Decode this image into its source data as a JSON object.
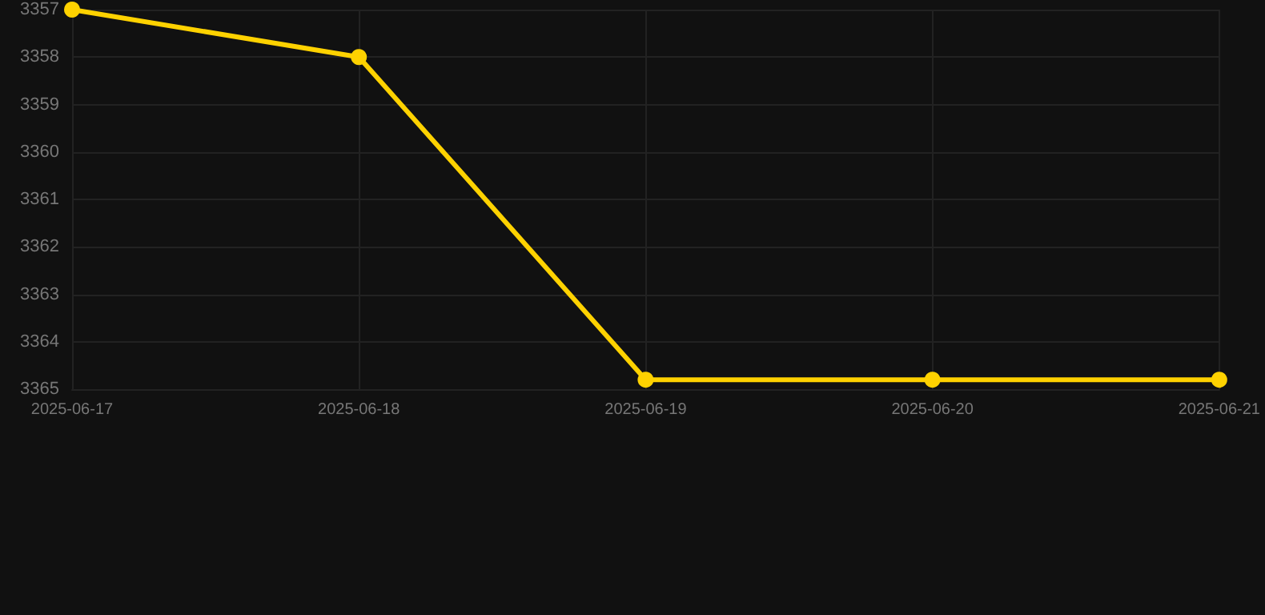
{
  "chart_data": {
    "type": "line",
    "categories": [
      "2025-06-17",
      "2025-06-18",
      "2025-06-19",
      "2025-06-20",
      "2025-06-21"
    ],
    "series": [
      {
        "color": "#ffd200",
        "values": [
          3357,
          3358,
          3364.8,
          3364.8,
          3364.8
        ]
      }
    ],
    "ylim": [
      3365,
      3357
    ],
    "yticks": [
      3357,
      3358,
      3359,
      3360,
      3361,
      3362,
      3363,
      3364,
      3365
    ],
    "grid": true,
    "marker": "circle",
    "line_style": "solid"
  }
}
